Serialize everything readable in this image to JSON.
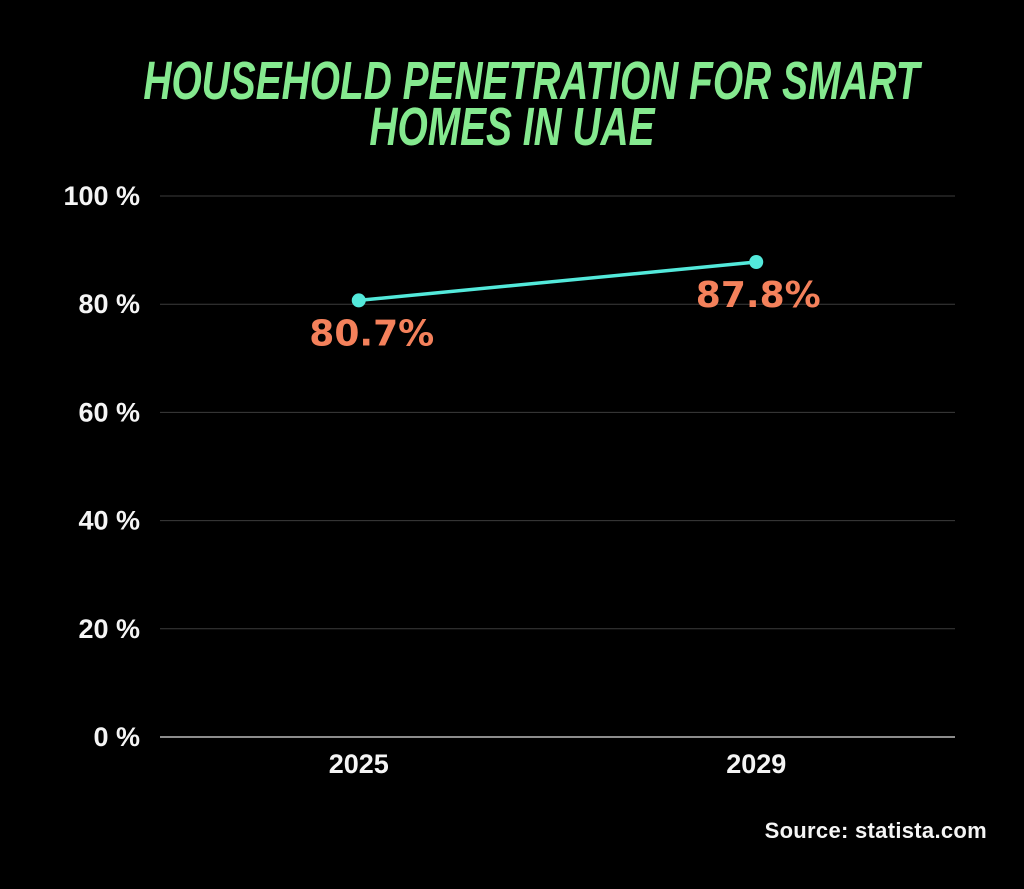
{
  "header": {
    "title_line1": "HOUSEHOLD PENETRATION FOR SMART",
    "title_line2": "HOMES IN UAE"
  },
  "footer": {
    "source": "Source: statista.com"
  },
  "colors": {
    "background": "#000000",
    "title_green": "#85E98F",
    "line_cyan": "#53E9DB",
    "label_orange": "#F4815B",
    "text": "#F5F5F5",
    "gridline": "#3C3C3C",
    "axis_line": "#8C8C8C"
  },
  "chart_data": {
    "type": "line",
    "title": "HOUSEHOLD PENETRATION FOR SMART HOMES IN UAE",
    "categories": [
      "2025",
      "2029"
    ],
    "points": [
      {
        "x": "2025",
        "y": 80.7,
        "label": "80.7%"
      },
      {
        "x": "2029",
        "y": 87.8,
        "label": "87.8%"
      }
    ],
    "y_ticks": [
      {
        "value": 100,
        "label": "100 %"
      },
      {
        "value": 80,
        "label": "80 %"
      },
      {
        "value": 60,
        "label": "60 %"
      },
      {
        "value": 40,
        "label": "40 %"
      },
      {
        "value": 20,
        "label": "20 %"
      },
      {
        "value": 0,
        "label": "0 %"
      }
    ],
    "ylim": [
      0,
      100
    ],
    "xlabel": "",
    "ylabel": "",
    "grid": "horizontal",
    "legend": "none",
    "marker": "circle",
    "source": "Source: statista.com"
  }
}
